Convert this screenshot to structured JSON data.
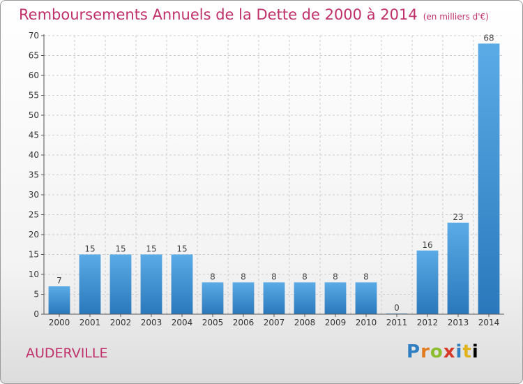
{
  "title": "Remboursements Annuels de la Dette de 2000 à 2014",
  "unit": "(en milliers d'€)",
  "commune": "AUDERVILLE",
  "logo": {
    "letters": [
      "P",
      "r",
      "o",
      "x",
      "i",
      "t",
      "i"
    ]
  },
  "colors": {
    "bar_top": "#5aabe6",
    "bar_bottom": "#2a78bb",
    "title": "#c0306a",
    "grid": "#cccccc"
  },
  "chart_data": {
    "type": "bar",
    "categories": [
      "2000",
      "2001",
      "2002",
      "2003",
      "2004",
      "2005",
      "2006",
      "2007",
      "2008",
      "2009",
      "2010",
      "2011",
      "2012",
      "2013",
      "2014"
    ],
    "values": [
      7,
      15,
      15,
      15,
      15,
      8,
      8,
      8,
      8,
      8,
      8,
      0,
      16,
      23,
      68
    ],
    "title": "Remboursements Annuels de la Dette de 2000 à 2014",
    "xlabel": "",
    "ylabel": "",
    "ylim": [
      0,
      70
    ],
    "yticks": [
      0,
      5,
      10,
      15,
      20,
      25,
      30,
      35,
      40,
      45,
      50,
      55,
      60,
      65,
      70
    ],
    "grid": true,
    "legend": "none"
  }
}
